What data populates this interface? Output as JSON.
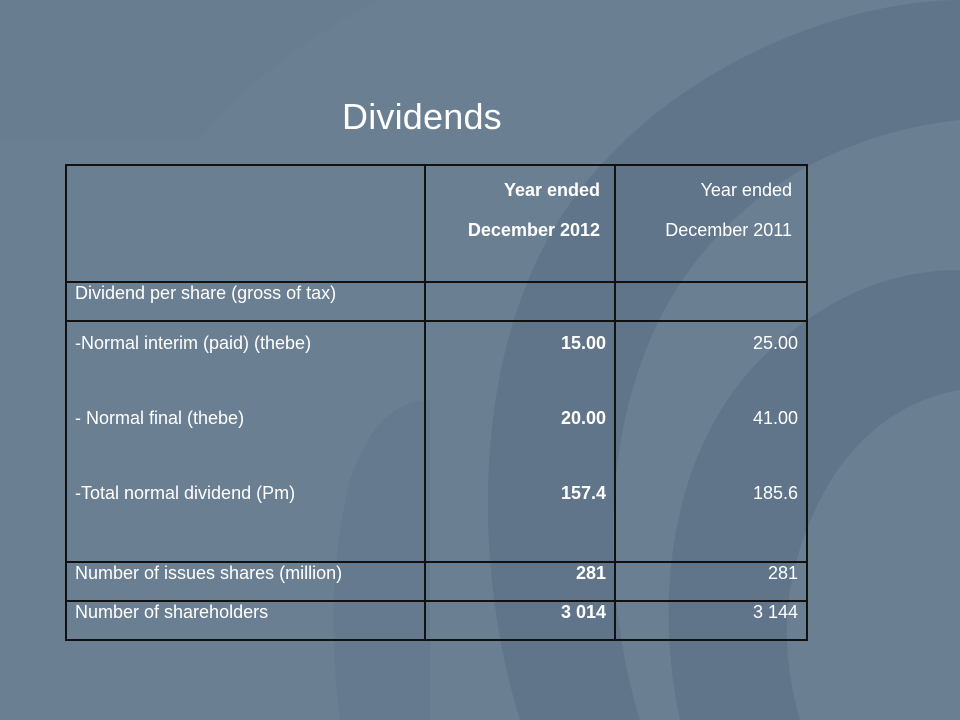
{
  "slide": {
    "title": "Dividends"
  },
  "table": {
    "header": {
      "col2_line1": "Year ended",
      "col2_line2": "December 2012",
      "col3_line1": "Year ended",
      "col3_line2": "December 2011"
    },
    "section_label": "Dividend per share (gross of tax)",
    "items": [
      {
        "label": "-Normal interim (paid) (thebe)",
        "y2012": "15.00",
        "y2011": "25.00"
      },
      {
        "label": "- Normal final (thebe)",
        "y2012": "20.00",
        "y2011": "41.00"
      },
      {
        "label": "-Total normal dividend   (Pm)",
        "y2012": "157.4",
        "y2011": "185.6"
      }
    ],
    "shares": {
      "label": "Number of issues shares (million)",
      "y2012": "281",
      "y2011": "281"
    },
    "shareholders": {
      "label": "Number of shareholders",
      "y2012": "3 014",
      "y2011": "3 144"
    }
  },
  "colors": {
    "background": "#6b7f93",
    "watermark": "#5e7387",
    "text": "#ffffff",
    "border": "#111111"
  }
}
